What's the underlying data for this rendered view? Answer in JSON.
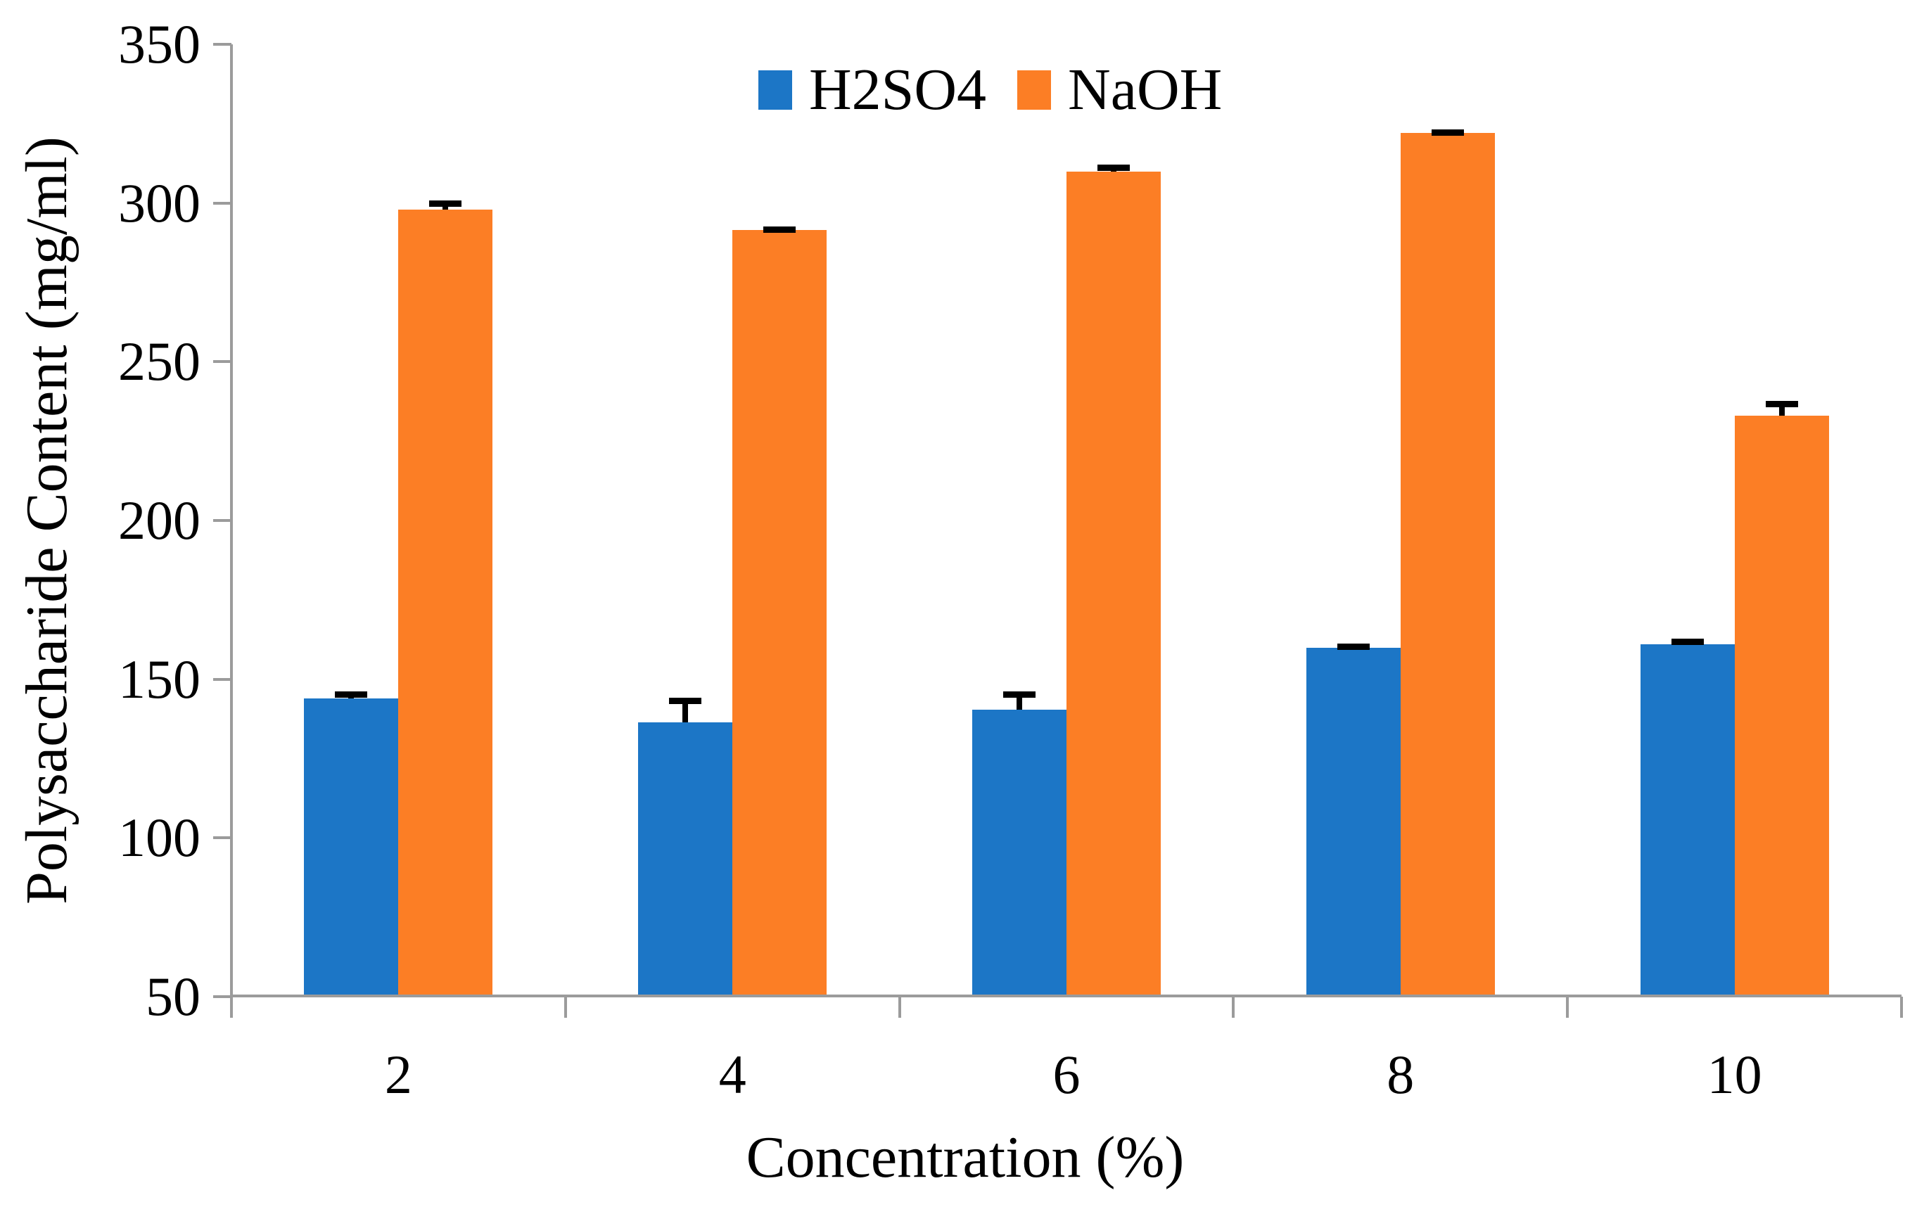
{
  "chart_data": {
    "type": "bar",
    "title": "",
    "categories": [
      "2",
      "4",
      "6",
      "8",
      "10"
    ],
    "series": [
      {
        "name": "H2SO4",
        "color": "#1c76c6",
        "values": [
          144,
          136.5,
          140.5,
          160,
          161
        ],
        "errors_plus": [
          2,
          7.5,
          5.5,
          1,
          1.5
        ]
      },
      {
        "name": "NaOH",
        "color": "#fc7e25",
        "values": [
          298,
          291.5,
          310,
          322,
          233
        ],
        "errors_plus": [
          2.5,
          1,
          2,
          1,
          4.5
        ]
      }
    ],
    "xlabel": "Concentration (%)",
    "ylabel": "Polysaccharide Content (mg/ml)",
    "ylim": [
      50,
      350
    ],
    "ytick_step": 50,
    "ytick_labels": [
      "350",
      "300",
      "250",
      "200",
      "150",
      "100",
      "50"
    ],
    "xtick_labels": [
      "2",
      "4",
      "6",
      "8",
      "10"
    ],
    "legend_position": "top-center",
    "legend_entries": [
      "H2SO4",
      "NaOH"
    ],
    "grid": false,
    "error_bar_color": "#000000",
    "axis_color": "#9b9b9b"
  }
}
